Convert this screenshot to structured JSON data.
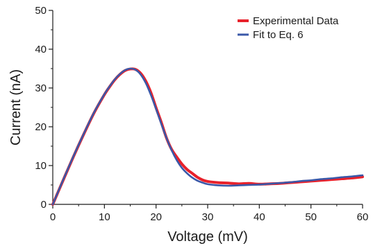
{
  "chart_data": {
    "type": "line",
    "xlabel": "Voltage (mV)",
    "ylabel": "Current (nA)",
    "xlim": [
      0,
      60
    ],
    "ylim": [
      0,
      50
    ],
    "x_ticks": [
      "0",
      "10",
      "20",
      "30",
      "40",
      "50",
      "60"
    ],
    "y_ticks": [
      "0",
      "10",
      "20",
      "30",
      "40",
      "50"
    ],
    "grid": false,
    "legend_position": "top-right",
    "series": [
      {
        "name": "Experimental Data",
        "color": "#e8212b",
        "x": [
          0,
          2,
          4,
          6,
          8,
          10,
          11,
          12,
          13,
          14,
          15,
          16,
          17,
          18,
          19,
          20,
          21,
          22,
          23,
          24,
          25,
          26,
          27,
          28,
          29,
          30,
          32,
          34,
          36,
          38,
          40,
          42,
          44,
          46,
          48,
          50,
          52,
          54,
          56,
          58,
          60
        ],
        "y": [
          0,
          6.2,
          12.3,
          18.1,
          23.6,
          28.3,
          30.3,
          32.1,
          33.5,
          34.5,
          34.9,
          34.8,
          33.8,
          31.8,
          28.8,
          24.9,
          21.2,
          17.2,
          14.2,
          12.2,
          10.4,
          9.0,
          8.0,
          7.0,
          6.3,
          5.9,
          5.6,
          5.5,
          5.3,
          5.4,
          5.2,
          5.3,
          5.4,
          5.6,
          5.8,
          6.0,
          6.2,
          6.4,
          6.6,
          6.8,
          7.1
        ]
      },
      {
        "name": "Fit to Eq. 6",
        "color": "#3a58a8",
        "x": [
          0,
          2,
          4,
          6,
          8,
          10,
          11,
          12,
          13,
          14,
          15,
          16,
          17,
          18,
          19,
          20,
          21,
          22,
          23,
          24,
          25,
          26,
          27,
          28,
          29,
          30,
          32,
          34,
          36,
          38,
          40,
          42,
          44,
          46,
          48,
          50,
          52,
          54,
          56,
          58,
          60
        ],
        "y": [
          0,
          6.3,
          12.4,
          18.2,
          23.7,
          28.4,
          30.4,
          32.2,
          33.6,
          34.6,
          35.0,
          34.7,
          33.5,
          31.3,
          28.2,
          24.6,
          20.8,
          17.2,
          14.0,
          11.4,
          9.4,
          8.0,
          6.9,
          6.1,
          5.6,
          5.2,
          4.9,
          4.8,
          4.9,
          5.0,
          5.1,
          5.3,
          5.5,
          5.7,
          6.0,
          6.2,
          6.5,
          6.7,
          7.0,
          7.2,
          7.5
        ]
      }
    ]
  }
}
